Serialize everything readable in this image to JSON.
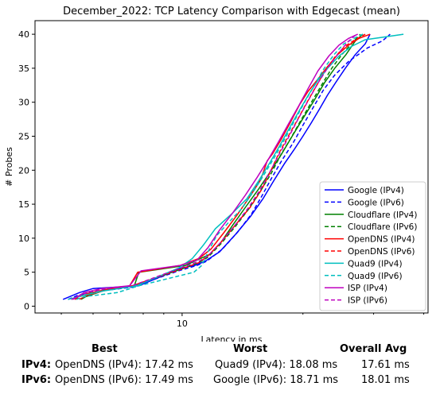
{
  "chart_data": {
    "type": "line",
    "title": "December_2022: TCP Latency Comparison with Edgecast (mean)",
    "xlabel": "Latency in ms",
    "ylabel": "# Probes",
    "xscale": "log",
    "xlim": [
      4.3,
      41
    ],
    "ylim": [
      -1,
      42
    ],
    "xticks": [
      {
        "value": 10,
        "label": "10"
      }
    ],
    "yticks": [
      0,
      5,
      10,
      15,
      20,
      25,
      30,
      35,
      40
    ],
    "legend": "lower-right",
    "series": [
      {
        "name": "Google (IPv4)",
        "color": "#0000ff",
        "dash": "solid",
        "x": [
          5.05,
          5.55,
          6.0,
          7.8,
          9.95,
          10.75,
          11.4,
          12.4,
          13.6,
          14.8,
          15.9,
          16.9,
          18.0,
          19.0,
          20.0,
          21.0,
          22.0,
          23.0,
          24.2,
          25.5,
          27.0,
          28.6,
          29.4
        ],
        "y": [
          1,
          2,
          2.6,
          3,
          5.6,
          6,
          6.6,
          8,
          10.6,
          13.2,
          15.8,
          18.4,
          21,
          23,
          25,
          27,
          29,
          31,
          33,
          35,
          37,
          38.6,
          40
        ]
      },
      {
        "name": "Google (IPv6)",
        "color": "#0000ff",
        "dash": "dashed",
        "x": [
          5.2,
          5.5,
          6.2,
          7.5,
          9.8,
          10.9,
          11.5,
          12.6,
          13.8,
          14.9,
          15.8,
          16.7,
          17.7,
          18.9,
          20.0,
          21.2,
          22.5,
          24.0,
          26.0,
          29.0,
          31.5,
          33.0
        ],
        "y": [
          1,
          1.6,
          2.2,
          2.8,
          5.2,
          6,
          6.6,
          8.4,
          11,
          13.6,
          16.2,
          18.8,
          21.4,
          24,
          26.6,
          29.2,
          31.8,
          34,
          36,
          38,
          39,
          40
        ]
      },
      {
        "name": "Cloudflare (IPv4)",
        "color": "#008000",
        "dash": "solid",
        "x": [
          5.6,
          5.75,
          6.6,
          7.6,
          7.8,
          10.2,
          11.1,
          11.7,
          12.5,
          13.4,
          14.4,
          15.5,
          16.6,
          17.7,
          18.8,
          20.0,
          21.3,
          22.6,
          24.0,
          25.6,
          27.0,
          28.2
        ],
        "y": [
          1,
          1.4,
          2.6,
          3,
          5,
          6,
          7,
          7.6,
          9.4,
          12,
          14.6,
          17.2,
          19.8,
          22.4,
          25,
          27.6,
          30.2,
          32.8,
          35,
          37,
          39,
          40
        ]
      },
      {
        "name": "Cloudflare (IPv6)",
        "color": "#008000",
        "dash": "dashed",
        "x": [
          5.3,
          5.7,
          6.3,
          7.5,
          9.9,
          11.0,
          11.6,
          12.5,
          13.6,
          14.7,
          15.7,
          16.7,
          17.6,
          18.7,
          19.8,
          21.0,
          22.3,
          23.6,
          25.0,
          26.4,
          27.8
        ],
        "y": [
          1,
          1.8,
          2.4,
          3,
          5.4,
          6.4,
          7.2,
          9.2,
          11.8,
          14.4,
          17,
          19.6,
          22.2,
          24.8,
          27.4,
          30,
          32.6,
          35,
          37,
          38.6,
          40
        ]
      },
      {
        "name": "OpenDNS (IPv4)",
        "color": "#ff0000",
        "dash": "solid",
        "x": [
          5.55,
          5.8,
          6.5,
          7.4,
          7.75,
          9.9,
          11.0,
          11.8,
          12.7,
          13.7,
          14.7,
          15.7,
          16.3,
          16.8,
          17.6,
          18.6,
          19.6,
          20.6,
          21.8,
          23.0,
          24.4,
          26.0,
          27.6,
          29.4
        ],
        "y": [
          1,
          1.6,
          2.4,
          3,
          5,
          6,
          7,
          8.4,
          10.8,
          13.4,
          16,
          18.6,
          21.4,
          22.4,
          24.4,
          27,
          29.6,
          31.6,
          33.4,
          35.2,
          37,
          38.4,
          39.4,
          40
        ]
      },
      {
        "name": "OpenDNS (IPv6)",
        "color": "#ff0000",
        "dash": "dashed",
        "x": [
          5.4,
          5.75,
          6.4,
          7.5,
          9.9,
          11.0,
          11.6,
          12.5,
          13.6,
          14.8,
          15.8,
          16.6,
          17.4,
          18.3,
          19.3,
          20.3,
          21.4,
          22.6,
          24.0,
          25.4,
          27.0,
          28.6
        ],
        "y": [
          1,
          1.8,
          2.4,
          3,
          5.4,
          6.4,
          7.4,
          9.4,
          12,
          14.6,
          17.2,
          19.8,
          22.4,
          24.8,
          27.2,
          29.6,
          32,
          34.4,
          36.6,
          38.2,
          39.2,
          40
        ]
      },
      {
        "name": "Quad9 (IPv4)",
        "color": "#00bfbf",
        "dash": "solid",
        "x": [
          5.2,
          5.7,
          6.3,
          7.7,
          9.8,
          10.6,
          11.3,
          12.1,
          13.3,
          14.5,
          15.5,
          16.5,
          17.5,
          18.5,
          19.6,
          20.7,
          21.9,
          23.2,
          24.6,
          26.4,
          28.6,
          32.0,
          35.6
        ],
        "y": [
          1,
          1.6,
          2.2,
          3,
          5.6,
          7,
          9,
          11.4,
          13.6,
          15.8,
          18.4,
          21,
          23.6,
          26.2,
          28.8,
          31.2,
          33.4,
          35.2,
          36.8,
          38.2,
          39.2,
          39.6,
          40
        ]
      },
      {
        "name": "Quad9 (IPv6)",
        "color": "#00bfbf",
        "dash": "dashed",
        "x": [
          5.45,
          5.7,
          6.9,
          7.8,
          10.7,
          11.2,
          11.6,
          12.2,
          13.1,
          14.1,
          15.1,
          16.1,
          17.1,
          18.1,
          19.1,
          20.2,
          21.4,
          22.6,
          23.9,
          25.3,
          26.8,
          28.2
        ],
        "y": [
          1,
          1.4,
          2,
          3,
          5,
          6,
          8,
          10.4,
          12.4,
          14.4,
          17,
          19.6,
          22.2,
          24.8,
          27.4,
          30,
          32.6,
          35,
          37,
          38.6,
          39.4,
          40
        ]
      },
      {
        "name": "ISP (IPv4)",
        "color": "#bf00bf",
        "dash": "solid",
        "x": [
          5.35,
          5.7,
          6.3,
          7.4,
          7.9,
          9.9,
          10.9,
          11.6,
          12.4,
          13.4,
          14.4,
          15.4,
          16.4,
          17.4,
          18.4,
          19.5,
          20.6,
          21.8,
          23.2,
          24.6,
          26.0,
          27.4
        ],
        "y": [
          1,
          2,
          2.6,
          3,
          5.2,
          6,
          6.8,
          8.6,
          11.2,
          13.8,
          16.4,
          19,
          21.6,
          24.2,
          26.8,
          29.4,
          32,
          34.6,
          36.8,
          38.4,
          39.4,
          40
        ]
      },
      {
        "name": "ISP (IPv6)",
        "color": "#bf00bf",
        "dash": "dashed",
        "x": [
          5.3,
          5.8,
          6.5,
          7.5,
          9.9,
          11.0,
          11.6,
          12.4,
          13.5,
          14.6,
          15.6,
          16.5,
          17.4,
          18.4,
          19.4,
          20.5,
          21.7,
          23.0,
          24.4,
          25.8,
          27.2
        ],
        "y": [
          1,
          2,
          2.6,
          3,
          5.6,
          6.6,
          7.4,
          9.2,
          11.8,
          14.4,
          17,
          19.6,
          22.2,
          24.8,
          27.4,
          30,
          32.6,
          35,
          37,
          38.8,
          40
        ]
      }
    ]
  },
  "summary": {
    "headers": {
      "best": "Best",
      "worst": "Worst",
      "avg": "Overall Avg"
    },
    "rows": [
      {
        "label": "IPv4:",
        "best": "OpenDNS (IPv4): 17.42 ms",
        "worst": "Quad9 (IPv4): 18.08 ms",
        "avg": "17.61 ms"
      },
      {
        "label": "IPv6:",
        "best": "OpenDNS (IPv6): 17.49 ms",
        "worst": "Google (IPv6): 18.71 ms",
        "avg": "18.01 ms"
      }
    ]
  }
}
